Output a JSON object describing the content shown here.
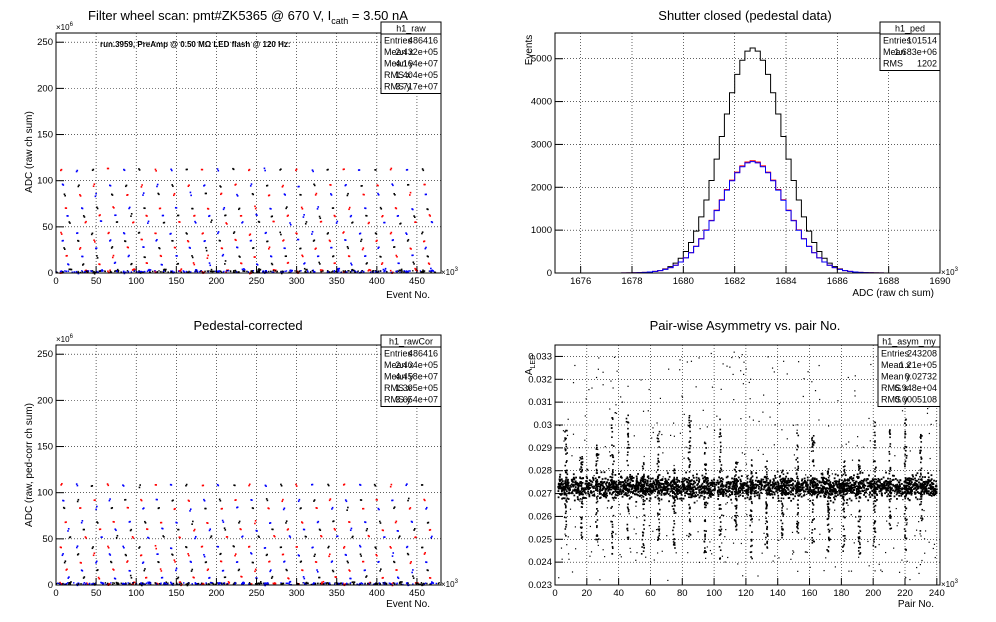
{
  "charts": [
    {
      "type": "scatter",
      "title": "Filter wheel scan: pmt#ZK5365 @   670 V, I",
      "title_sub": "cath",
      "title_end": " = 3.50 nA",
      "ylabel": "ADC (raw ch sum)",
      "xlabel": "Event No.",
      "x_exp": "×10",
      "x_exp_pow": "3",
      "y_exp": "×10",
      "y_exp_pow": "6",
      "annotation": "run.3959, PreAmp @ 0.50 MΩ LED flash @  120 Hz:",
      "xlim": [
        0,
        480
      ],
      "ylim": [
        0,
        260
      ],
      "xticks": [
        "0",
        "50",
        "100",
        "150",
        "200",
        "250",
        "300",
        "350",
        "400",
        "450"
      ],
      "yticks": [
        "0",
        "50",
        "100",
        "150",
        "200",
        "250"
      ],
      "grid": true,
      "stats": {
        "name": "h1_raw",
        "rows": [
          [
            "Entries",
            "486416"
          ],
          [
            "Mean x",
            "2.432e+05"
          ],
          [
            "Mean y",
            "4.164e+07"
          ],
          [
            "RMS x",
            "1.404e+05"
          ],
          [
            "RMS y",
            "3.717e+07"
          ]
        ]
      },
      "levels": [
        112,
        95,
        85,
        70,
        62,
        55,
        43,
        35,
        27,
        18,
        10,
        3,
        1
      ]
    },
    {
      "type": "histogram",
      "title": "Shutter closed (pedestal data)",
      "ylabel": "Events",
      "xlabel": "ADC (raw ch sum)",
      "x_exp": "×10",
      "x_exp_pow": "3",
      "xlim": [
        1675,
        1690
      ],
      "ylim": [
        0,
        5600
      ],
      "xticks": [
        "1676",
        "1678",
        "1680",
        "1682",
        "1684",
        "1686",
        "1688",
        "1690"
      ],
      "yticks": [
        "0",
        "1000",
        "2000",
        "3000",
        "4000",
        "5000"
      ],
      "grid": true,
      "stats": {
        "name": "h1_ped",
        "rows": [
          [
            "Entries",
            "101514"
          ],
          [
            "Mean",
            "1.683e+06"
          ],
          [
            "RMS",
            "1202"
          ]
        ]
      },
      "series": [
        {
          "color": "#000000",
          "mean": 1682.7,
          "sigma": 1.2,
          "peak": 5250
        },
        {
          "color": "#ff0000",
          "mean": 1682.7,
          "sigma": 1.3,
          "peak": 2620
        },
        {
          "color": "#0000ff",
          "mean": 1682.7,
          "sigma": 1.3,
          "peak": 2600
        }
      ]
    },
    {
      "type": "scatter",
      "title": "Pedestal-corrected",
      "ylabel": "ADC (raw, ped-corr ch sum)",
      "xlabel": "Event No.",
      "x_exp": "×10",
      "x_exp_pow": "3",
      "y_exp": "×10",
      "y_exp_pow": "6",
      "xlim": [
        0,
        480
      ],
      "ylim": [
        0,
        260
      ],
      "xticks": [
        "0",
        "50",
        "100",
        "150",
        "200",
        "250",
        "300",
        "350",
        "400",
        "450"
      ],
      "yticks": [
        "0",
        "50",
        "100",
        "150",
        "200",
        "250"
      ],
      "grid": true,
      "stats": {
        "name": "h1_rawCor",
        "rows": [
          [
            "Entries",
            "486416"
          ],
          [
            "Mean x",
            "2.404e+05"
          ],
          [
            "Mean y",
            "4.458e+07"
          ],
          [
            "RMS x",
            "1.395e+05"
          ],
          [
            "RMS y",
            "3.654e+07"
          ]
        ]
      },
      "levels": [
        108,
        92,
        83,
        68,
        60,
        52,
        41,
        33,
        25,
        16,
        8,
        2,
        1
      ]
    },
    {
      "type": "scatter",
      "title": "Pair-wise Asymmetry vs. pair No.",
      "ylabel": "A",
      "ylabel_sub": "LED",
      "xlabel": "Pair No.",
      "x_exp": "×10",
      "x_exp_pow": "3",
      "xlim": [
        0,
        242
      ],
      "ylim": [
        0.023,
        0.0335
      ],
      "xticks": [
        "0",
        "20",
        "40",
        "60",
        "80",
        "100",
        "120",
        "140",
        "160",
        "180",
        "200",
        "220",
        "240"
      ],
      "yticks": [
        "0.023",
        "0.024",
        "0.025",
        "0.026",
        "0.027",
        "0.028",
        "0.029",
        "0.03",
        "0.031",
        "0.032",
        "0.033"
      ],
      "grid": true,
      "stats": {
        "name": "h1_asym_my",
        "rows": [
          [
            "Entries",
            "243208"
          ],
          [
            "Mean x",
            "1.21e+05"
          ],
          [
            "Mean y",
            "0.02732"
          ],
          [
            "RMS x",
            "6.948e+04"
          ],
          [
            "RMS y",
            "0.0005108"
          ]
        ]
      },
      "band_center": 0.02728,
      "band_halfwidth": 0.0005
    }
  ]
}
